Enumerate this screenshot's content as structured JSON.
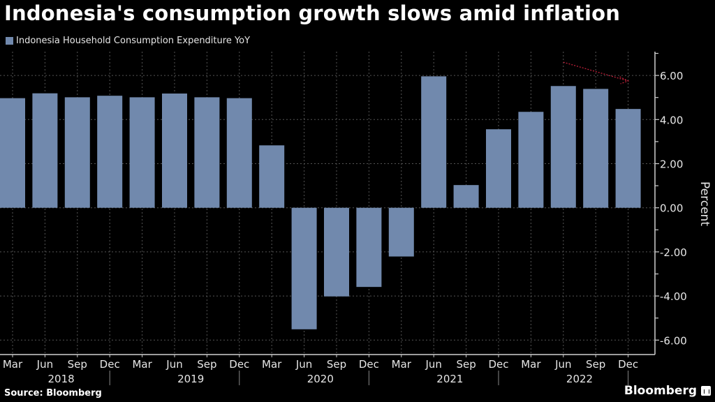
{
  "title": "Indonesia's consumption growth slows amid inflation",
  "source": "Source: Bloomberg",
  "brand": "Bloomberg",
  "colors": {
    "bar": "#7189ad",
    "background": "#000000",
    "grid": "#555555",
    "annotation": "#c0203a"
  },
  "chart_data": {
    "type": "bar",
    "title": "Indonesia's consumption growth slows amid inflation",
    "legend": [
      {
        "name": "Indonesia Household Consumption Expenditure YoY",
        "color": "#7189ad"
      }
    ],
    "legend_position": "top-left",
    "categories": [
      "Mar",
      "Jun",
      "Sep",
      "Dec",
      "Mar",
      "Jun",
      "Sep",
      "Dec",
      "Mar",
      "Jun",
      "Sep",
      "Dec",
      "Mar",
      "Jun",
      "Sep",
      "Dec",
      "Mar",
      "Jun",
      "Sep",
      "Dec"
    ],
    "years": [
      {
        "label": "2018",
        "start": 0,
        "end": 3
      },
      {
        "label": "2019",
        "start": 4,
        "end": 7
      },
      {
        "label": "2020",
        "start": 8,
        "end": 11
      },
      {
        "label": "2021",
        "start": 12,
        "end": 15
      },
      {
        "label": "2022",
        "start": 16,
        "end": 19
      }
    ],
    "series": [
      {
        "name": "Indonesia Household Consumption Expenditure YoY",
        "values": [
          4.97,
          5.19,
          5.01,
          5.08,
          5.01,
          5.18,
          5.01,
          4.97,
          2.83,
          -5.51,
          -4.02,
          -3.59,
          -2.21,
          5.96,
          1.03,
          3.56,
          4.35,
          5.52,
          5.39,
          4.48
        ]
      }
    ],
    "xlabel": "",
    "ylabel": "Percent",
    "ylim": [
      -6.6,
      7.0
    ],
    "yticks": [
      6,
      4,
      2,
      0,
      -2,
      -4,
      -6
    ],
    "ytick_labels": [
      "6.00",
      "4.00",
      "2.00",
      "0.00",
      "-2.00",
      "-4.00",
      "-6.00"
    ],
    "y_axis_side": "right",
    "grid": true,
    "annotations": [
      {
        "type": "arrow",
        "from_category_index": 17,
        "from_value": 6.6,
        "to_category_index": 19,
        "to_value": 5.75,
        "style": "dotted",
        "color": "#c0203a"
      }
    ]
  }
}
